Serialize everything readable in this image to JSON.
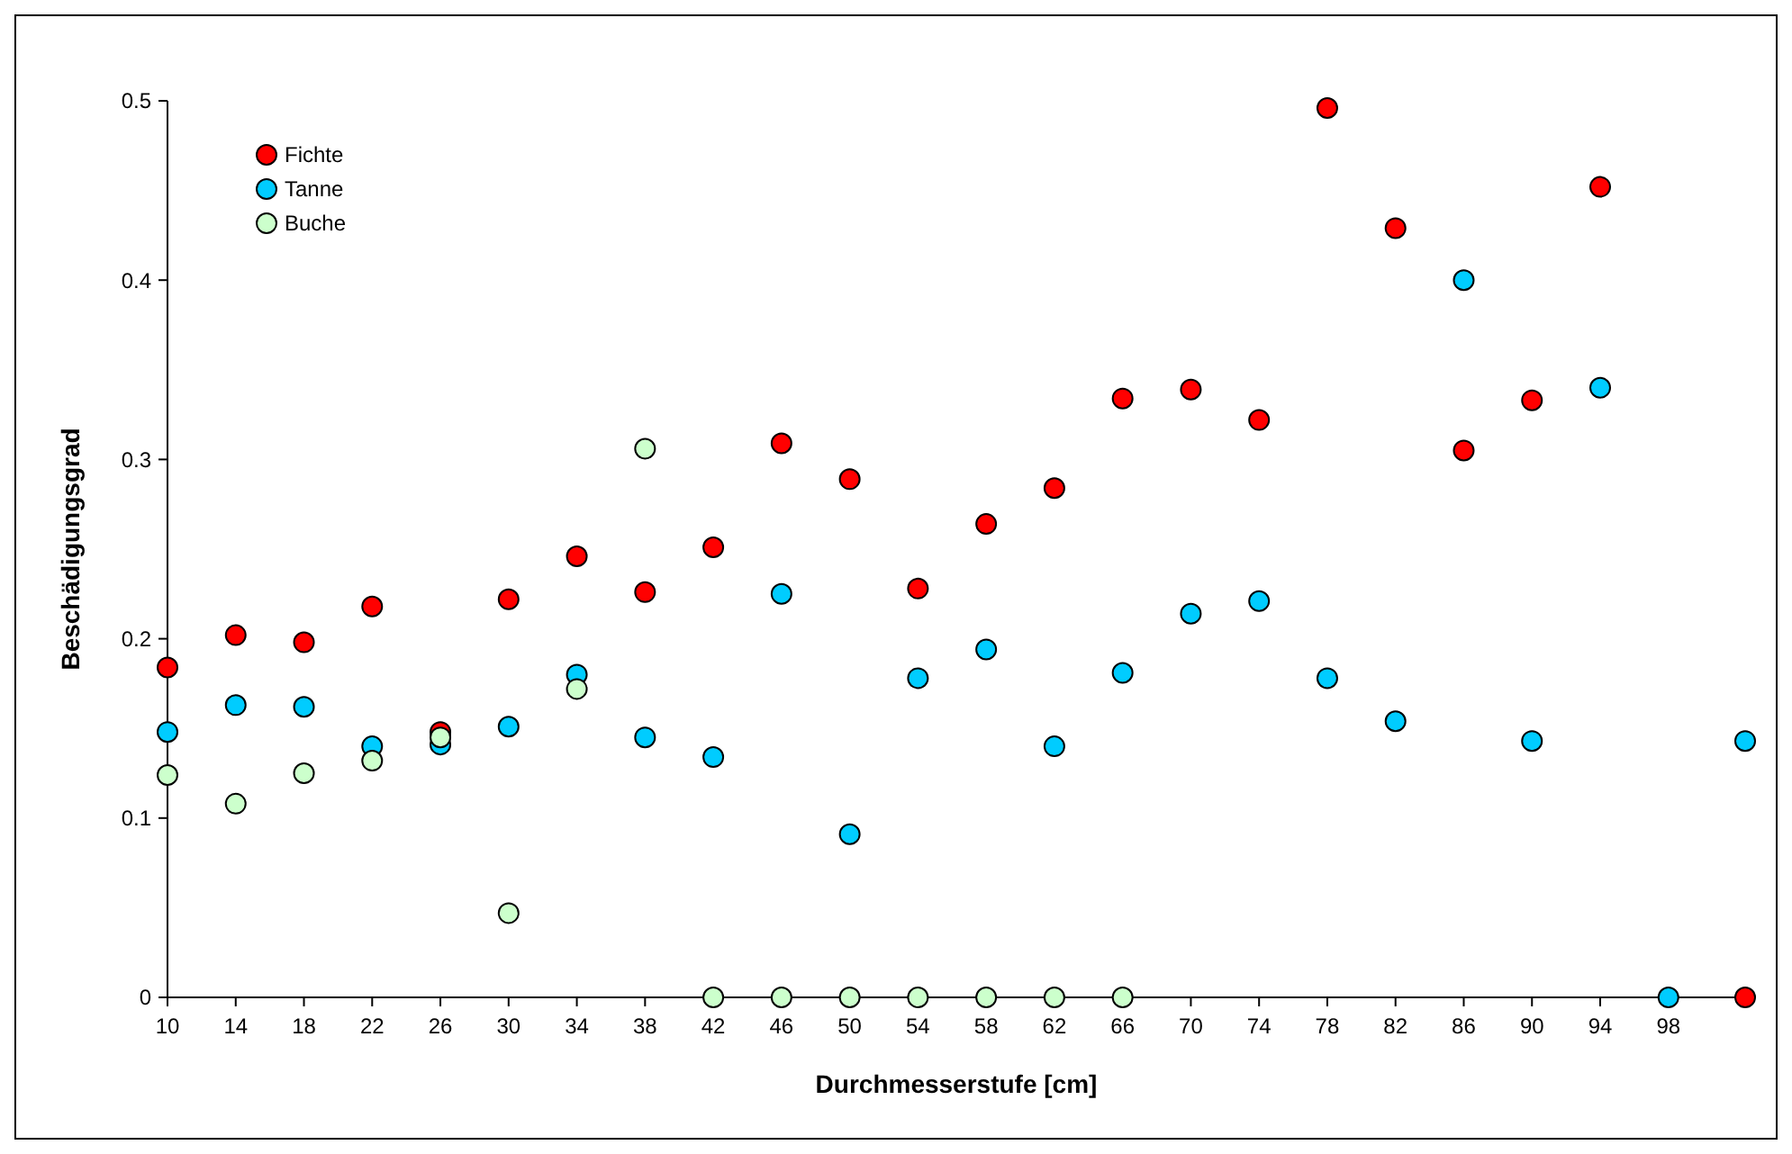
{
  "chart_data": {
    "type": "scatter",
    "xlabel": "Durchmesserstufe [cm]",
    "ylabel": "Beschädigungsgrad",
    "xlim": [
      10,
      102.5
    ],
    "xticks": [
      10,
      14,
      18,
      22,
      26,
      30,
      34,
      38,
      42,
      46,
      50,
      54,
      58,
      62,
      66,
      70,
      74,
      78,
      82,
      86,
      90,
      94,
      98
    ],
    "ylim": [
      0,
      0.5
    ],
    "yticks": [
      0,
      0.1,
      0.2,
      0.3,
      0.4,
      0.5
    ],
    "grid": false,
    "legend": "top left",
    "marker": "circle",
    "series": [
      {
        "name": "Fichte",
        "color": "#ff0000",
        "x": [
          10,
          14,
          18,
          22,
          26,
          30,
          34,
          38,
          42,
          46,
          50,
          54,
          58,
          62,
          66,
          70,
          74,
          78,
          82,
          86,
          90,
          94,
          102.5
        ],
        "values": [
          0.184,
          0.202,
          0.198,
          0.218,
          0.148,
          0.222,
          0.246,
          0.226,
          0.251,
          0.309,
          0.289,
          0.228,
          0.264,
          0.284,
          0.334,
          0.339,
          0.322,
          0.496,
          0.429,
          0.305,
          0.333,
          0.452,
          0
        ]
      },
      {
        "name": "Tanne",
        "color": "#00ccff",
        "x": [
          10,
          14,
          18,
          22,
          26,
          30,
          34,
          38,
          42,
          46,
          50,
          54,
          58,
          62,
          66,
          70,
          74,
          78,
          82,
          86,
          90,
          94,
          98,
          102.5
        ],
        "values": [
          0.148,
          0.163,
          0.162,
          0.14,
          0.141,
          0.151,
          0.18,
          0.145,
          0.134,
          0.225,
          0.091,
          0.178,
          0.194,
          0.14,
          0.181,
          0.214,
          0.221,
          0.178,
          0.154,
          0.4,
          0.143,
          0.34,
          0,
          0.143
        ]
      },
      {
        "name": "Buche",
        "color": "#ccffcc",
        "x": [
          10,
          14,
          18,
          22,
          26,
          30,
          34,
          38,
          42,
          46,
          50,
          54,
          58,
          62,
          66
        ],
        "values": [
          0.124,
          0.108,
          0.125,
          0.132,
          0.145,
          0.047,
          0.172,
          0.306,
          0,
          0,
          0,
          0,
          0,
          0,
          0
        ]
      }
    ]
  }
}
